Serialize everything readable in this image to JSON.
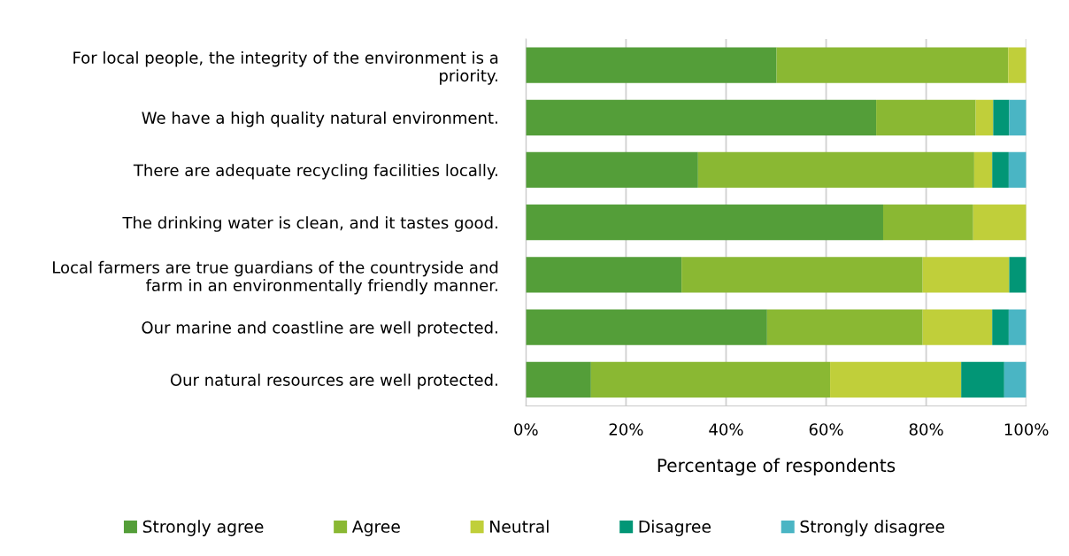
{
  "chart_data": {
    "type": "bar",
    "orientation": "horizontal",
    "stacked": true,
    "xlabel": "Percentage of respondents",
    "categories": [
      "For local people, the integrity of the environment is a\npriority.",
      "We have a high quality natural environment.",
      "There are adequate recycling facilities locally.",
      "The drinking water is clean, and it tastes good.",
      "Local farmers are true guardians of the countryside and\nfarm in an environmentally friendly manner.",
      "Our marine and coastline are well protected.",
      "Our natural resources are well protected."
    ],
    "series": [
      {
        "name": "Strongly agree",
        "color": "#549e39",
        "values": [
          50.1,
          70.0,
          34.4,
          71.4,
          31.1,
          48.2,
          13.0
        ]
      },
      {
        "name": "Agree",
        "color": "#8ab833",
        "values": [
          46.3,
          19.9,
          55.2,
          18.0,
          48.2,
          31.1,
          47.8
        ]
      },
      {
        "name": "Neutral",
        "color": "#c0cf3a",
        "values": [
          3.6,
          3.5,
          3.6,
          10.6,
          17.3,
          13.9,
          26.2
        ]
      },
      {
        "name": "Disagree",
        "color": "#029676",
        "values": [
          0,
          3.2,
          3.3,
          0,
          3.4,
          3.3,
          8.6
        ]
      },
      {
        "name": "Strongly disagree",
        "color": "#4ab5c4",
        "values": [
          0,
          3.4,
          3.5,
          0,
          0,
          3.5,
          4.4
        ]
      }
    ],
    "xlim": [
      0,
      100
    ],
    "xticks": [
      {
        "value": 0,
        "label": "0%"
      },
      {
        "value": 20,
        "label": "20%"
      },
      {
        "value": 40,
        "label": "40%"
      },
      {
        "value": 60,
        "label": "60%"
      },
      {
        "value": 80,
        "label": "80%"
      },
      {
        "value": 100,
        "label": "100%"
      }
    ],
    "grid": "x",
    "legend": "bottom"
  }
}
